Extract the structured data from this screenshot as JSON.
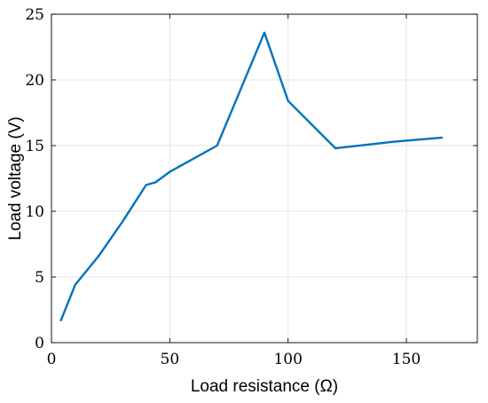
{
  "chart_data": {
    "type": "line",
    "xlabel": "Load resistance (Ω)",
    "ylabel": "Load voltage (V)",
    "xlim": [
      0,
      180
    ],
    "ylim": [
      0,
      25
    ],
    "xticks": [
      0,
      50,
      100,
      150
    ],
    "yticks": [
      0,
      5,
      10,
      15,
      20,
      25
    ],
    "grid": true,
    "series": [
      {
        "color": "#0072bd",
        "x": [
          4,
          10,
          20,
          30,
          40,
          44,
          50,
          70,
          90,
          100,
          120,
          145,
          165
        ],
        "y": [
          1.7,
          4.4,
          6.6,
          9.2,
          12.0,
          12.2,
          13.0,
          15.0,
          23.6,
          18.4,
          14.8,
          15.3,
          15.6
        ]
      }
    ]
  }
}
